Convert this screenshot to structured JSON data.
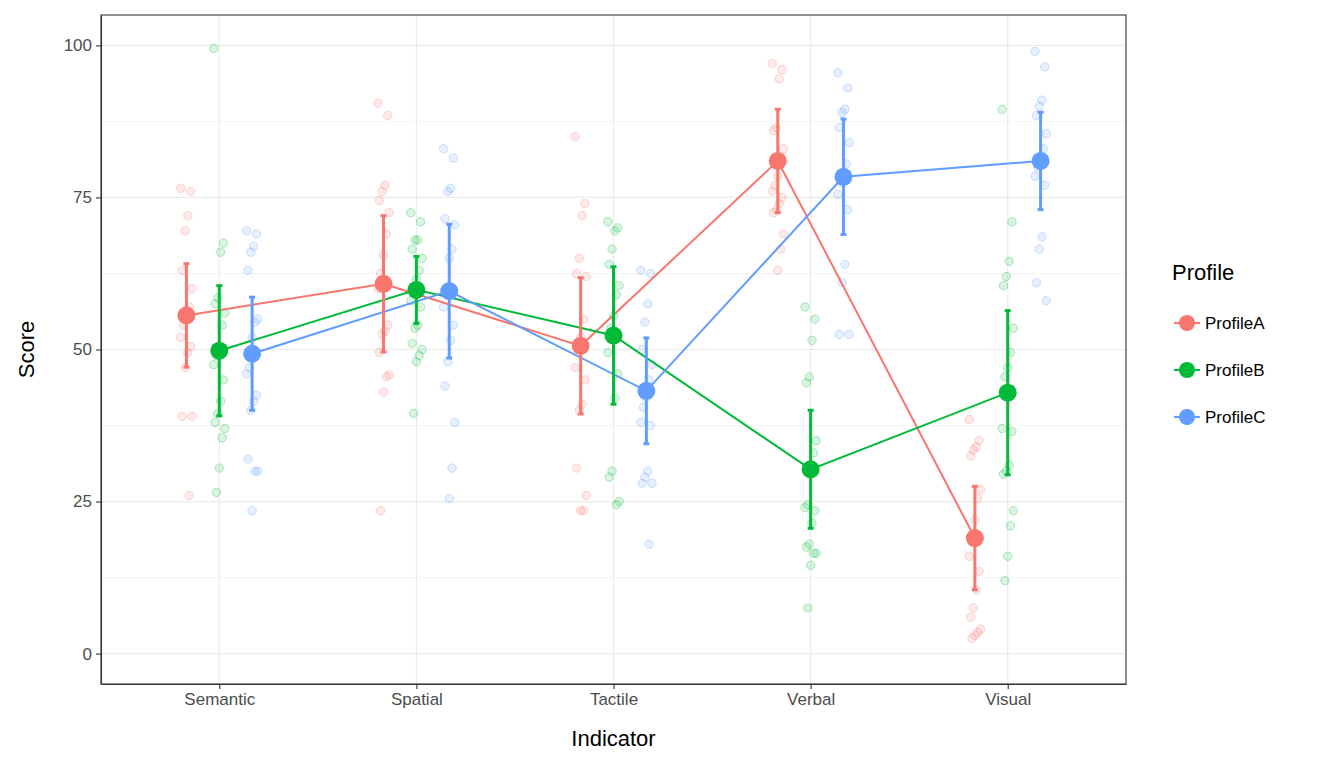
{
  "chart_data": {
    "type": "line",
    "marker": "circle",
    "x_label": "Indicator",
    "y_label": "Score",
    "legend_title": "Profile",
    "legend": "right",
    "grid": true,
    "categories": [
      "Semantic",
      "Spatial",
      "Tactile",
      "Verbal",
      "Visual"
    ],
    "ylim": [
      -5,
      105
    ],
    "yticks": [
      0,
      25,
      50,
      75,
      100
    ],
    "series": [
      {
        "name": "ProfileA",
        "color": "#F8766D",
        "values": [
          55.6,
          60.8,
          50.6,
          81.0,
          19.0
        ],
        "error": [
          8.5,
          11.2,
          11.2,
          8.5,
          8.5
        ],
        "points": [
          [
            76.5,
            76,
            72,
            69.5,
            63,
            60,
            57,
            55,
            54,
            52,
            50.5,
            49.5,
            47,
            39,
            39,
            26
          ],
          [
            90.5,
            88.5,
            77,
            76,
            74.5,
            72.5,
            69,
            65.5,
            62.5,
            60,
            54,
            53,
            52.5,
            49.5,
            45.8,
            45.5,
            43,
            23.5
          ],
          [
            85,
            74,
            72,
            65,
            62.5,
            62,
            55,
            52,
            50,
            47,
            45,
            41,
            40,
            30.5,
            26,
            23.5,
            23.5
          ],
          [
            97,
            96,
            94.5,
            86.5,
            86,
            83,
            81,
            78.5,
            77,
            76,
            75,
            74,
            73,
            72.5,
            69,
            66.5,
            63
          ],
          [
            38.5,
            35,
            34,
            33.5,
            32.5,
            27,
            25.5,
            22,
            19,
            16,
            13.5,
            10.5,
            7.5,
            6,
            4,
            3.5,
            3,
            2.5
          ]
        ]
      },
      {
        "name": "ProfileB",
        "color": "#00BA38",
        "values": [
          49.8,
          59.8,
          52.3,
          30.3,
          42.9
        ],
        "error": [
          10.7,
          5.5,
          11.3,
          9.7,
          13.5
        ],
        "points": [
          [
            99.5,
            67.5,
            66,
            58.5,
            57.5,
            56,
            54,
            50,
            49,
            47.5,
            45,
            41.5,
            39.5,
            38,
            37,
            35.5,
            30.5,
            26.5
          ],
          [
            72.5,
            71,
            68,
            68,
            66.5,
            65,
            63,
            61.5,
            60,
            58,
            57,
            54,
            53.5,
            51,
            50,
            49,
            48,
            39.5
          ],
          [
            71,
            70,
            69.5,
            66.5,
            64,
            60.5,
            59,
            55.5,
            53.5,
            49.5,
            46,
            42,
            30,
            29,
            25,
            24.5
          ],
          [
            57,
            55,
            51.5,
            45.5,
            44.5,
            35,
            33,
            30,
            24.5,
            24,
            23.5,
            21.5,
            18,
            17.5,
            16.5,
            16.5,
            14.5,
            7.5
          ],
          [
            89.5,
            71,
            64.5,
            62,
            60.5,
            53.5,
            49.5,
            47,
            45.5,
            37,
            36.5,
            31,
            30,
            29.5,
            23.5,
            21,
            16,
            12
          ]
        ]
      },
      {
        "name": "ProfileC",
        "color": "#619CFF",
        "values": [
          49.3,
          59.6,
          43.2,
          78.4,
          81.0
        ],
        "error": [
          9.3,
          11.0,
          8.7,
          9.5,
          8.0
        ],
        "points": [
          [
            69.5,
            69,
            67,
            66,
            63,
            55,
            54.5,
            52,
            47,
            46,
            42.5,
            41.5,
            40,
            32,
            30,
            30,
            23.5
          ],
          [
            83,
            81.5,
            76.5,
            76,
            71.5,
            70.5,
            66.5,
            65,
            60,
            57,
            54,
            51.5,
            48,
            44,
            38,
            30.5,
            25.5
          ],
          [
            63,
            62.5,
            57.5,
            54.5,
            50,
            47.5,
            45,
            42,
            40.5,
            38,
            37.5,
            30,
            29,
            28,
            28,
            18
          ],
          [
            95.5,
            93,
            89.5,
            89,
            86.5,
            84,
            80.5,
            79,
            77.5,
            75.5,
            73,
            64,
            61,
            52.5,
            52.5
          ],
          [
            99,
            96.5,
            91,
            90,
            88.5,
            85.5,
            83,
            81.5,
            80,
            78.5,
            77,
            68.5,
            66.5,
            61,
            58
          ]
        ]
      }
    ]
  }
}
